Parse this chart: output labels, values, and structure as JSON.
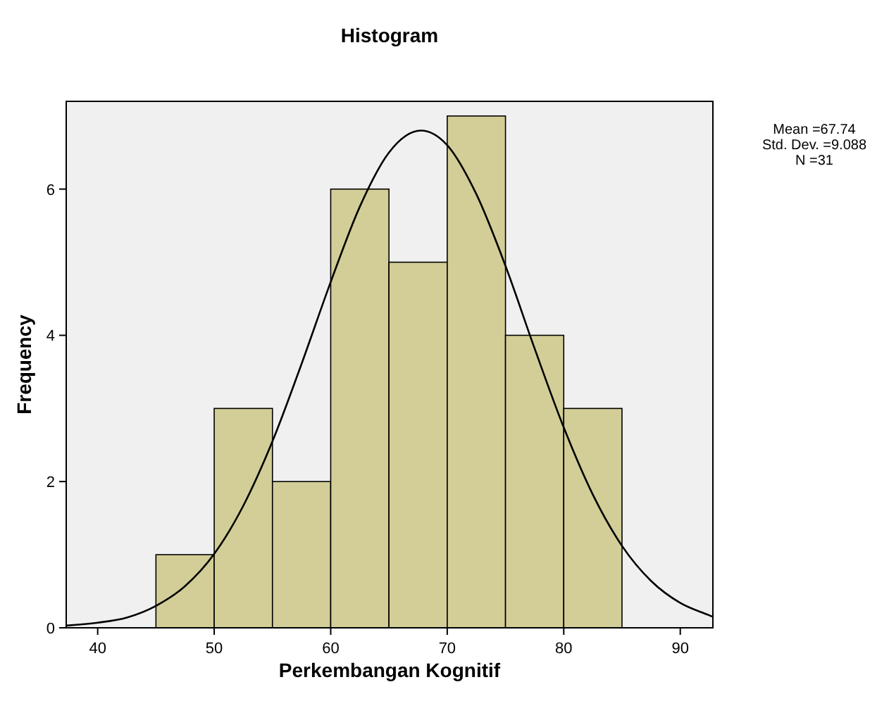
{
  "chart_data": {
    "type": "histogram",
    "title": "Histogram",
    "xlabel": "Perkembangan Kognitif",
    "ylabel": "Frequency",
    "bins": [
      45,
      50,
      55,
      60,
      65,
      70,
      75,
      80,
      85
    ],
    "values": [
      1,
      3,
      2,
      6,
      5,
      7,
      4,
      3
    ],
    "color": "#d3ce97",
    "series": [
      {
        "type": "line",
        "color": "#000000",
        "x": [
          37.3,
          40,
          42.5,
          45,
          47.5,
          50,
          52.5,
          55,
          57.5,
          60,
          62.5,
          65,
          67.74,
          70,
          72.5,
          75,
          77.5,
          80,
          82.5,
          85,
          87.5,
          90,
          92.5,
          92.8
        ],
        "values": [
          0.03,
          0.07,
          0.14,
          0.3,
          0.57,
          1.01,
          1.67,
          2.55,
          3.61,
          4.73,
          5.76,
          6.5,
          6.8,
          6.6,
          5.93,
          4.95,
          3.82,
          2.74,
          1.82,
          1.12,
          0.64,
          0.34,
          0.17,
          0.15
        ]
      }
    ],
    "xlim": [
      37.3,
      92.8
    ],
    "xticks": [
      40,
      50,
      60,
      70,
      80,
      90
    ],
    "ylim": [
      0,
      7.2
    ],
    "yticks": [
      0,
      2,
      4,
      6
    ],
    "grid": false,
    "annotations": [
      "Mean =67.74",
      "Std. Dev. =9.088",
      "N =31"
    ]
  }
}
